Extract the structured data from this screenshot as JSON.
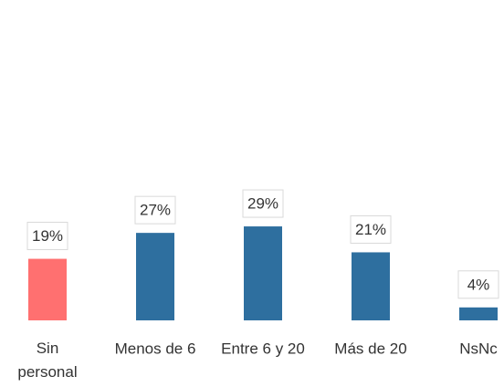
{
  "chart_data": {
    "type": "bar",
    "categories": [
      "Sin personal",
      "Menos de 6",
      "Entre 6 y 20",
      "Más de 20",
      "NsNc"
    ],
    "values": [
      19,
      27,
      29,
      21,
      4
    ],
    "value_labels": [
      "19%",
      "27%",
      "29%",
      "21%",
      "4%"
    ],
    "colors": [
      "#ff7070",
      "#2e6f9f",
      "#2e6f9f",
      "#2e6f9f",
      "#2e6f9f"
    ]
  }
}
